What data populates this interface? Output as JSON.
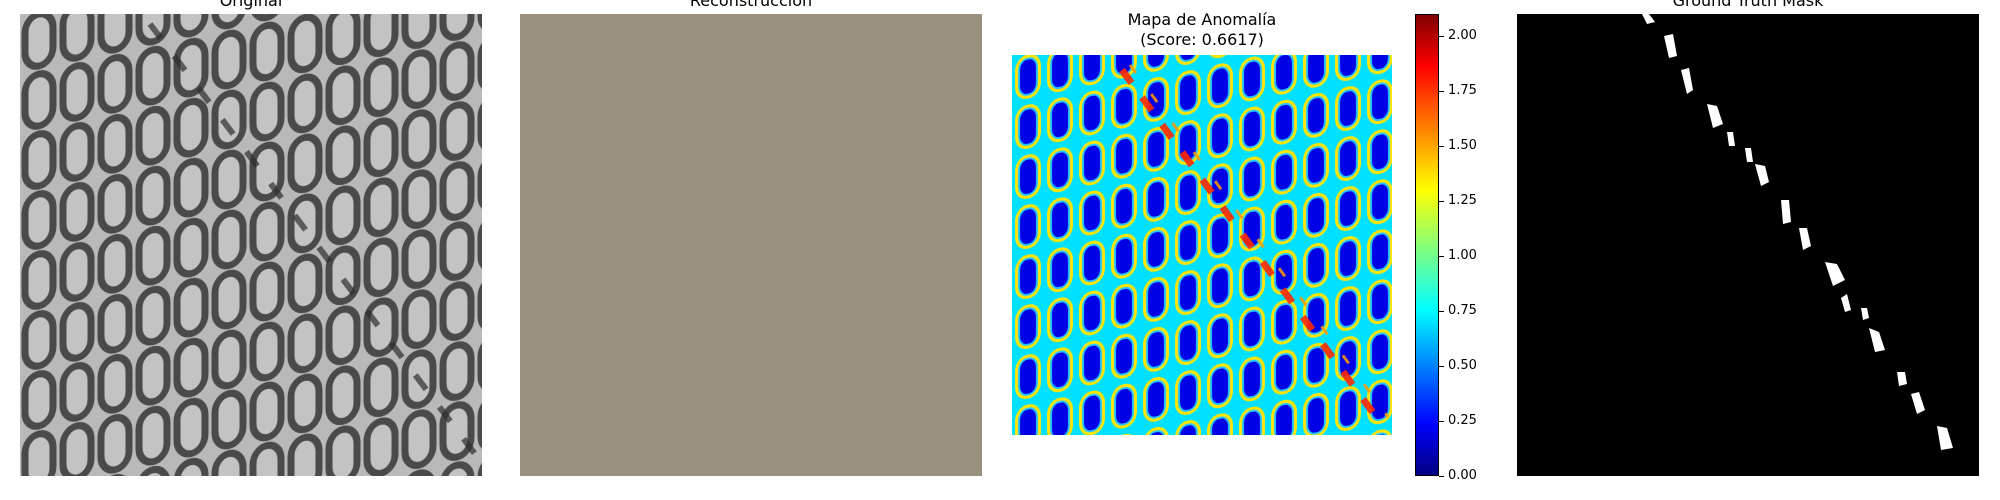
{
  "panels": [
    {
      "title": "Original"
    },
    {
      "title": "Reconstrucción"
    },
    {
      "title_line1": "Mapa de Anomalía",
      "title_line2": "(Score: 0.6617)"
    },
    {
      "title": "Ground Truth Mask"
    }
  ],
  "colorbar": {
    "min": 0.0,
    "max": 2.1,
    "ticks": [
      "0.00",
      "0.25",
      "0.50",
      "0.75",
      "1.00",
      "1.25",
      "1.50",
      "1.75",
      "2.00"
    ],
    "colormap": "jet"
  },
  "colors": {
    "reconstruction_fill": "#9a9080",
    "mesh_background": "#b9b9b9",
    "mesh_wire": "#4a4a4a",
    "mask_background": "#000000",
    "mask_fill": "#ffffff"
  }
}
